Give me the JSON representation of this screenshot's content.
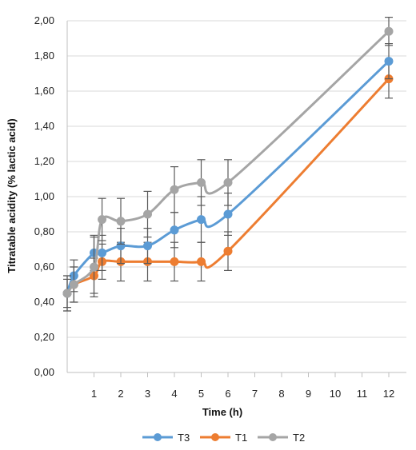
{
  "chart_data": {
    "type": "line",
    "xlabel": "Time (h)",
    "ylabel": "Titratable acidity (% lactic acid)",
    "x_ticks": [
      "1",
      "2",
      "3",
      "4",
      "5",
      "6",
      "7",
      "8",
      "9",
      "10",
      "11",
      "12"
    ],
    "y_ticks": [
      "0,00",
      "0,20",
      "0,40",
      "0,60",
      "0,80",
      "1,00",
      "1,20",
      "1,40",
      "1,60",
      "1,80",
      "2,00"
    ],
    "ylim": [
      0,
      2
    ],
    "grid": "horizontal",
    "legend_position": "bottom",
    "series": [
      {
        "name": "T3",
        "color": "#5B9BD5",
        "x": [
          0,
          0.25,
          1,
          1.3,
          2,
          3,
          4,
          5,
          6,
          12
        ],
        "values": [
          0.45,
          0.55,
          0.68,
          0.68,
          0.72,
          0.72,
          0.81,
          0.87,
          0.9,
          1.77
        ],
        "error": [
          0.08,
          0.09,
          0.1,
          0.1,
          0.1,
          0.1,
          0.1,
          0.13,
          0.12,
          0.1
        ]
      },
      {
        "name": "T1",
        "color": "#ED7D31",
        "x": [
          0,
          0.25,
          1,
          1.3,
          2,
          3,
          4,
          5,
          6,
          12
        ],
        "values": [
          0.45,
          0.5,
          0.55,
          0.63,
          0.63,
          0.63,
          0.63,
          0.63,
          0.69,
          1.67
        ],
        "error": [
          0.1,
          0.1,
          0.1,
          0.1,
          0.11,
          0.11,
          0.11,
          0.11,
          0.11,
          0.11
        ]
      },
      {
        "name": "T2",
        "color": "#A5A5A5",
        "x": [
          0,
          0.25,
          1,
          1.3,
          2,
          3,
          4,
          5,
          6,
          12
        ],
        "values": [
          0.45,
          0.5,
          0.6,
          0.87,
          0.86,
          0.9,
          1.04,
          1.08,
          1.08,
          1.94
        ],
        "error": [
          0.1,
          0.1,
          0.17,
          0.12,
          0.13,
          0.13,
          0.13,
          0.13,
          0.13,
          0.08
        ]
      }
    ]
  }
}
